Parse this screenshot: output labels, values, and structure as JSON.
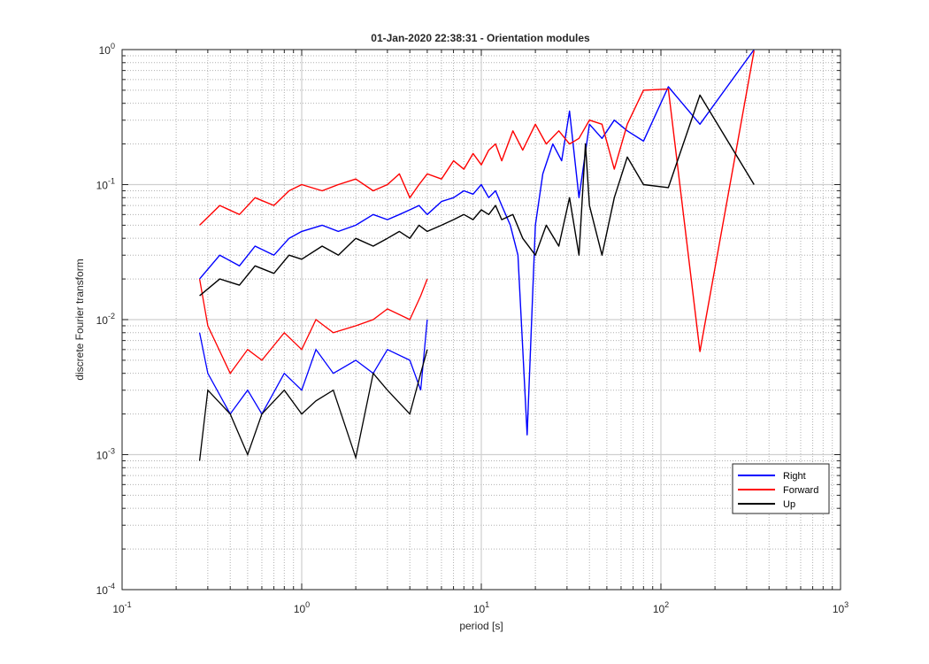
{
  "chart_data": {
    "type": "line",
    "title": "01-Jan-2020 22:38:31 - Orientation modules",
    "xlabel": "period [s]",
    "ylabel": "discrete Fourier transform",
    "xscale": "log",
    "yscale": "log",
    "xlim": [
      0.1,
      1000
    ],
    "ylim": [
      0.0001,
      1
    ],
    "grid": true,
    "minor_grid": true,
    "legend_position": "bottom-right",
    "x_ticks": [
      {
        "value": 0.1,
        "base": "10",
        "exp": "-1"
      },
      {
        "value": 1,
        "base": "10",
        "exp": "0"
      },
      {
        "value": 10,
        "base": "10",
        "exp": "1"
      },
      {
        "value": 100,
        "base": "10",
        "exp": "2"
      },
      {
        "value": 1000,
        "base": "10",
        "exp": "3"
      }
    ],
    "y_ticks": [
      {
        "value": 0.0001,
        "base": "10",
        "exp": "-4"
      },
      {
        "value": 0.001,
        "base": "10",
        "exp": "-3"
      },
      {
        "value": 0.01,
        "base": "10",
        "exp": "-2"
      },
      {
        "value": 0.1,
        "base": "10",
        "exp": "-1"
      },
      {
        "value": 1,
        "base": "10",
        "exp": "0"
      }
    ],
    "series": [
      {
        "name": "Right",
        "color": "#0000ff",
        "x": [
          0.27,
          0.35,
          0.45,
          0.55,
          0.7,
          0.85,
          1.0,
          1.3,
          1.6,
          2.0,
          2.5,
          3.0,
          3.5,
          4.0,
          4.5,
          5.0,
          6.0,
          7.0,
          8.0,
          9.0,
          10.0,
          11.0,
          12.0,
          13.0,
          14.5,
          16.0,
          18.0,
          20.0,
          22.0,
          25.0,
          28.0,
          31.0,
          35.0,
          40.0,
          47.0,
          55.0,
          65.0,
          80.0,
          110.0,
          165.0,
          330.0
        ],
        "y": [
          0.02,
          0.03,
          0.025,
          0.035,
          0.03,
          0.04,
          0.045,
          0.05,
          0.045,
          0.05,
          0.06,
          0.055,
          0.06,
          0.065,
          0.07,
          0.06,
          0.075,
          0.08,
          0.09,
          0.085,
          0.1,
          0.08,
          0.09,
          0.07,
          0.05,
          0.03,
          0.0014,
          0.05,
          0.12,
          0.2,
          0.15,
          0.35,
          0.08,
          0.28,
          0.22,
          0.3,
          0.25,
          0.21,
          0.53,
          0.28,
          1.0
        ]
      },
      {
        "name": "Forward",
        "color": "#ff0000",
        "x": [
          0.27,
          0.35,
          0.45,
          0.55,
          0.7,
          0.85,
          1.0,
          1.3,
          1.6,
          2.0,
          2.5,
          3.0,
          3.5,
          4.0,
          4.5,
          5.0,
          6.0,
          7.0,
          8.0,
          9.0,
          10.0,
          11.0,
          12.0,
          13.0,
          15.0,
          17.0,
          20.0,
          23.0,
          27.0,
          31.0,
          35.0,
          40.0,
          47.0,
          55.0,
          65.0,
          80.0,
          110.0,
          165.0,
          330.0
        ],
        "y": [
          0.05,
          0.07,
          0.06,
          0.08,
          0.07,
          0.09,
          0.1,
          0.09,
          0.1,
          0.11,
          0.09,
          0.1,
          0.12,
          0.08,
          0.1,
          0.12,
          0.11,
          0.15,
          0.13,
          0.17,
          0.14,
          0.18,
          0.2,
          0.15,
          0.25,
          0.18,
          0.28,
          0.2,
          0.25,
          0.2,
          0.22,
          0.3,
          0.28,
          0.13,
          0.28,
          0.5,
          0.51,
          0.0058,
          0.98
        ]
      },
      {
        "name": "Up",
        "color": "#000000",
        "x": [
          0.27,
          0.35,
          0.45,
          0.55,
          0.7,
          0.85,
          1.0,
          1.3,
          1.6,
          2.0,
          2.5,
          3.0,
          3.5,
          4.0,
          4.5,
          5.0,
          6.0,
          7.0,
          8.0,
          9.0,
          10.0,
          11.0,
          12.0,
          13.0,
          15.0,
          17.0,
          20.0,
          23.0,
          27.0,
          31.0,
          35.0,
          38.0,
          40.0,
          47.0,
          55.0,
          65.0,
          80.0,
          110.0,
          165.0,
          330.0
        ],
        "y": [
          0.015,
          0.02,
          0.018,
          0.025,
          0.022,
          0.03,
          0.028,
          0.035,
          0.03,
          0.04,
          0.035,
          0.04,
          0.045,
          0.04,
          0.05,
          0.045,
          0.05,
          0.055,
          0.06,
          0.055,
          0.065,
          0.06,
          0.07,
          0.055,
          0.06,
          0.04,
          0.03,
          0.05,
          0.035,
          0.08,
          0.03,
          0.2,
          0.07,
          0.03,
          0.08,
          0.16,
          0.1,
          0.095,
          0.46,
          0.1
        ]
      }
    ],
    "noise_floor": [
      {
        "series": 0,
        "x": [
          0.27,
          0.3,
          0.4,
          0.5,
          0.6,
          0.8,
          1.0,
          1.2,
          1.5,
          2.0,
          2.5,
          3.0,
          4.0,
          4.6,
          5.0
        ],
        "y": [
          0.008,
          0.004,
          0.002,
          0.003,
          0.002,
          0.004,
          0.003,
          0.006,
          0.004,
          0.005,
          0.004,
          0.006,
          0.005,
          0.003,
          0.01
        ]
      },
      {
        "series": 1,
        "x": [
          0.27,
          0.3,
          0.4,
          0.5,
          0.6,
          0.8,
          1.0,
          1.2,
          1.5,
          2.0,
          2.5,
          3.0,
          4.0,
          4.6,
          5.0
        ],
        "y": [
          0.02,
          0.009,
          0.004,
          0.006,
          0.005,
          0.008,
          0.006,
          0.01,
          0.008,
          0.009,
          0.01,
          0.012,
          0.01,
          0.015,
          0.02
        ]
      },
      {
        "series": 2,
        "x": [
          0.27,
          0.3,
          0.4,
          0.5,
          0.6,
          0.8,
          1.0,
          1.2,
          1.5,
          2.0,
          2.5,
          3.0,
          4.0,
          4.6,
          5.0
        ],
        "y": [
          0.0009,
          0.003,
          0.002,
          0.001,
          0.002,
          0.003,
          0.002,
          0.0025,
          0.003,
          0.00095,
          0.004,
          0.003,
          0.002,
          0.004,
          0.006
        ]
      }
    ]
  }
}
